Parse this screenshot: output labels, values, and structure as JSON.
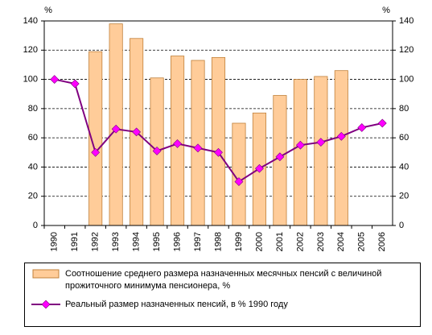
{
  "chart_data": {
    "type": "combo",
    "y_unit": "%",
    "y2_unit": "%",
    "categories": [
      "1990",
      "1991",
      "1992",
      "1993",
      "1994",
      "1995",
      "1996",
      "1997",
      "1998",
      "1999",
      "2000",
      "2001",
      "2002",
      "2003",
      "2004",
      "2005",
      "2006"
    ],
    "series": [
      {
        "name": "Соотношение среднего размера назначенных месячных пенсий с величиной прожиточного минимума пенсионера, %",
        "type": "bar",
        "color": "#ffcc99",
        "values": [
          null,
          null,
          119,
          138,
          128,
          101,
          116,
          113,
          115,
          70,
          77,
          89,
          100,
          102,
          106,
          null,
          null
        ]
      },
      {
        "name": "Реальный размер назначенных пенсий, в % 1990 году",
        "type": "line",
        "color": "#800080",
        "marker_color": "#ff00ff",
        "values": [
          100,
          97,
          50,
          66,
          64,
          51,
          56,
          53,
          50,
          30,
          39,
          47,
          55,
          57,
          61,
          67,
          70
        ]
      }
    ],
    "ylim": [
      0,
      140
    ],
    "yticks": [
      0,
      20,
      40,
      60,
      80,
      100,
      120,
      140
    ],
    "y2lim": [
      0,
      140
    ],
    "y2ticks": [
      0,
      20,
      40,
      60,
      80,
      100,
      120,
      140
    ],
    "grid": true
  }
}
